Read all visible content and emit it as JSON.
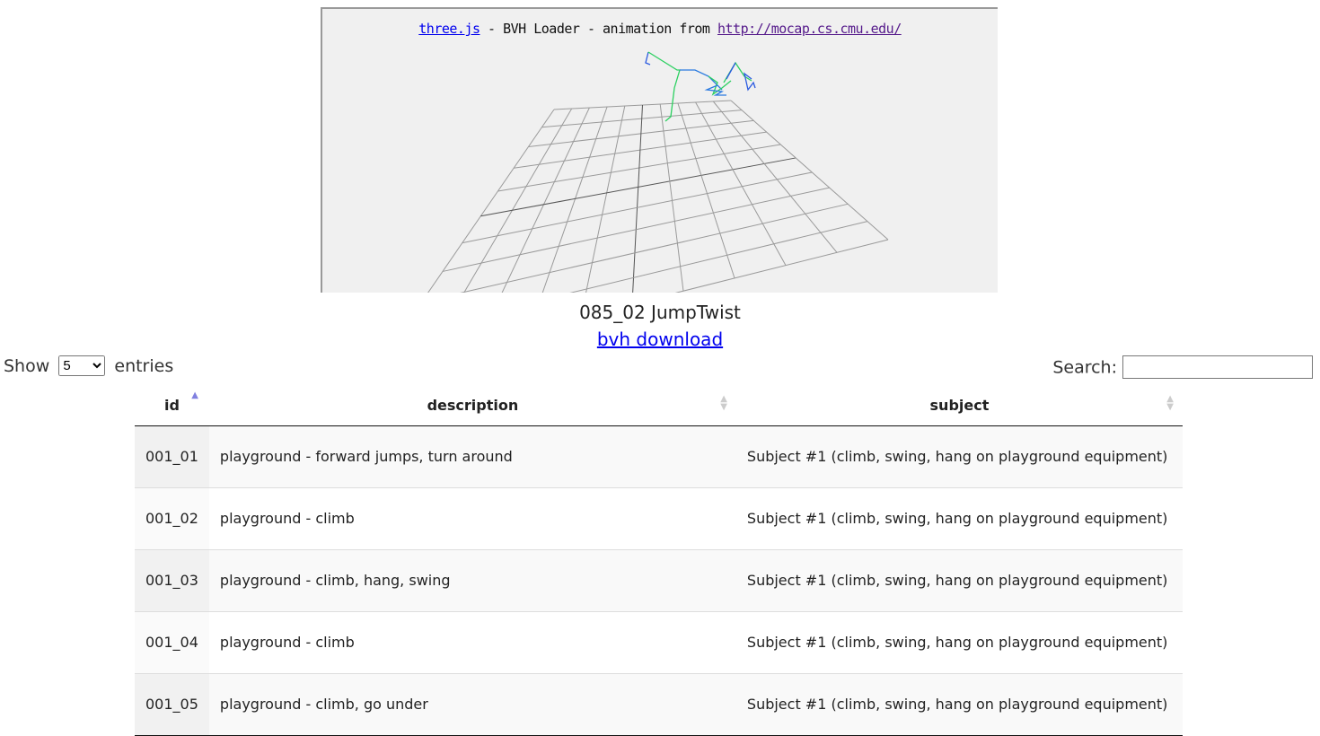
{
  "viewer": {
    "link1": "three.js",
    "text": " - BVH Loader - animation from ",
    "link2": "http://mocap.cs.cmu.edu/"
  },
  "caption": "085_02 JumpTwist",
  "download": "bvh download",
  "length": {
    "show": "Show",
    "value": "5",
    "entries": "entries"
  },
  "search": {
    "label": "Search:",
    "value": ""
  },
  "table": {
    "headers": [
      "id",
      "description",
      "subject"
    ],
    "sort": {
      "column": "id",
      "direction": "ascending"
    },
    "rows": [
      [
        "001_01",
        "playground - forward jumps, turn around",
        "Subject #1 (climb, swing, hang on playground equipment)"
      ],
      [
        "001_02",
        "playground - climb",
        "Subject #1 (climb, swing, hang on playground equipment)"
      ],
      [
        "001_03",
        "playground - climb, hang, swing",
        "Subject #1 (climb, swing, hang on playground equipment)"
      ],
      [
        "001_04",
        "playground - climb",
        "Subject #1 (climb, swing, hang on playground equipment)"
      ],
      [
        "001_05",
        "playground - climb, go under",
        "Subject #1 (climb, swing, hang on playground equipment)"
      ]
    ]
  }
}
